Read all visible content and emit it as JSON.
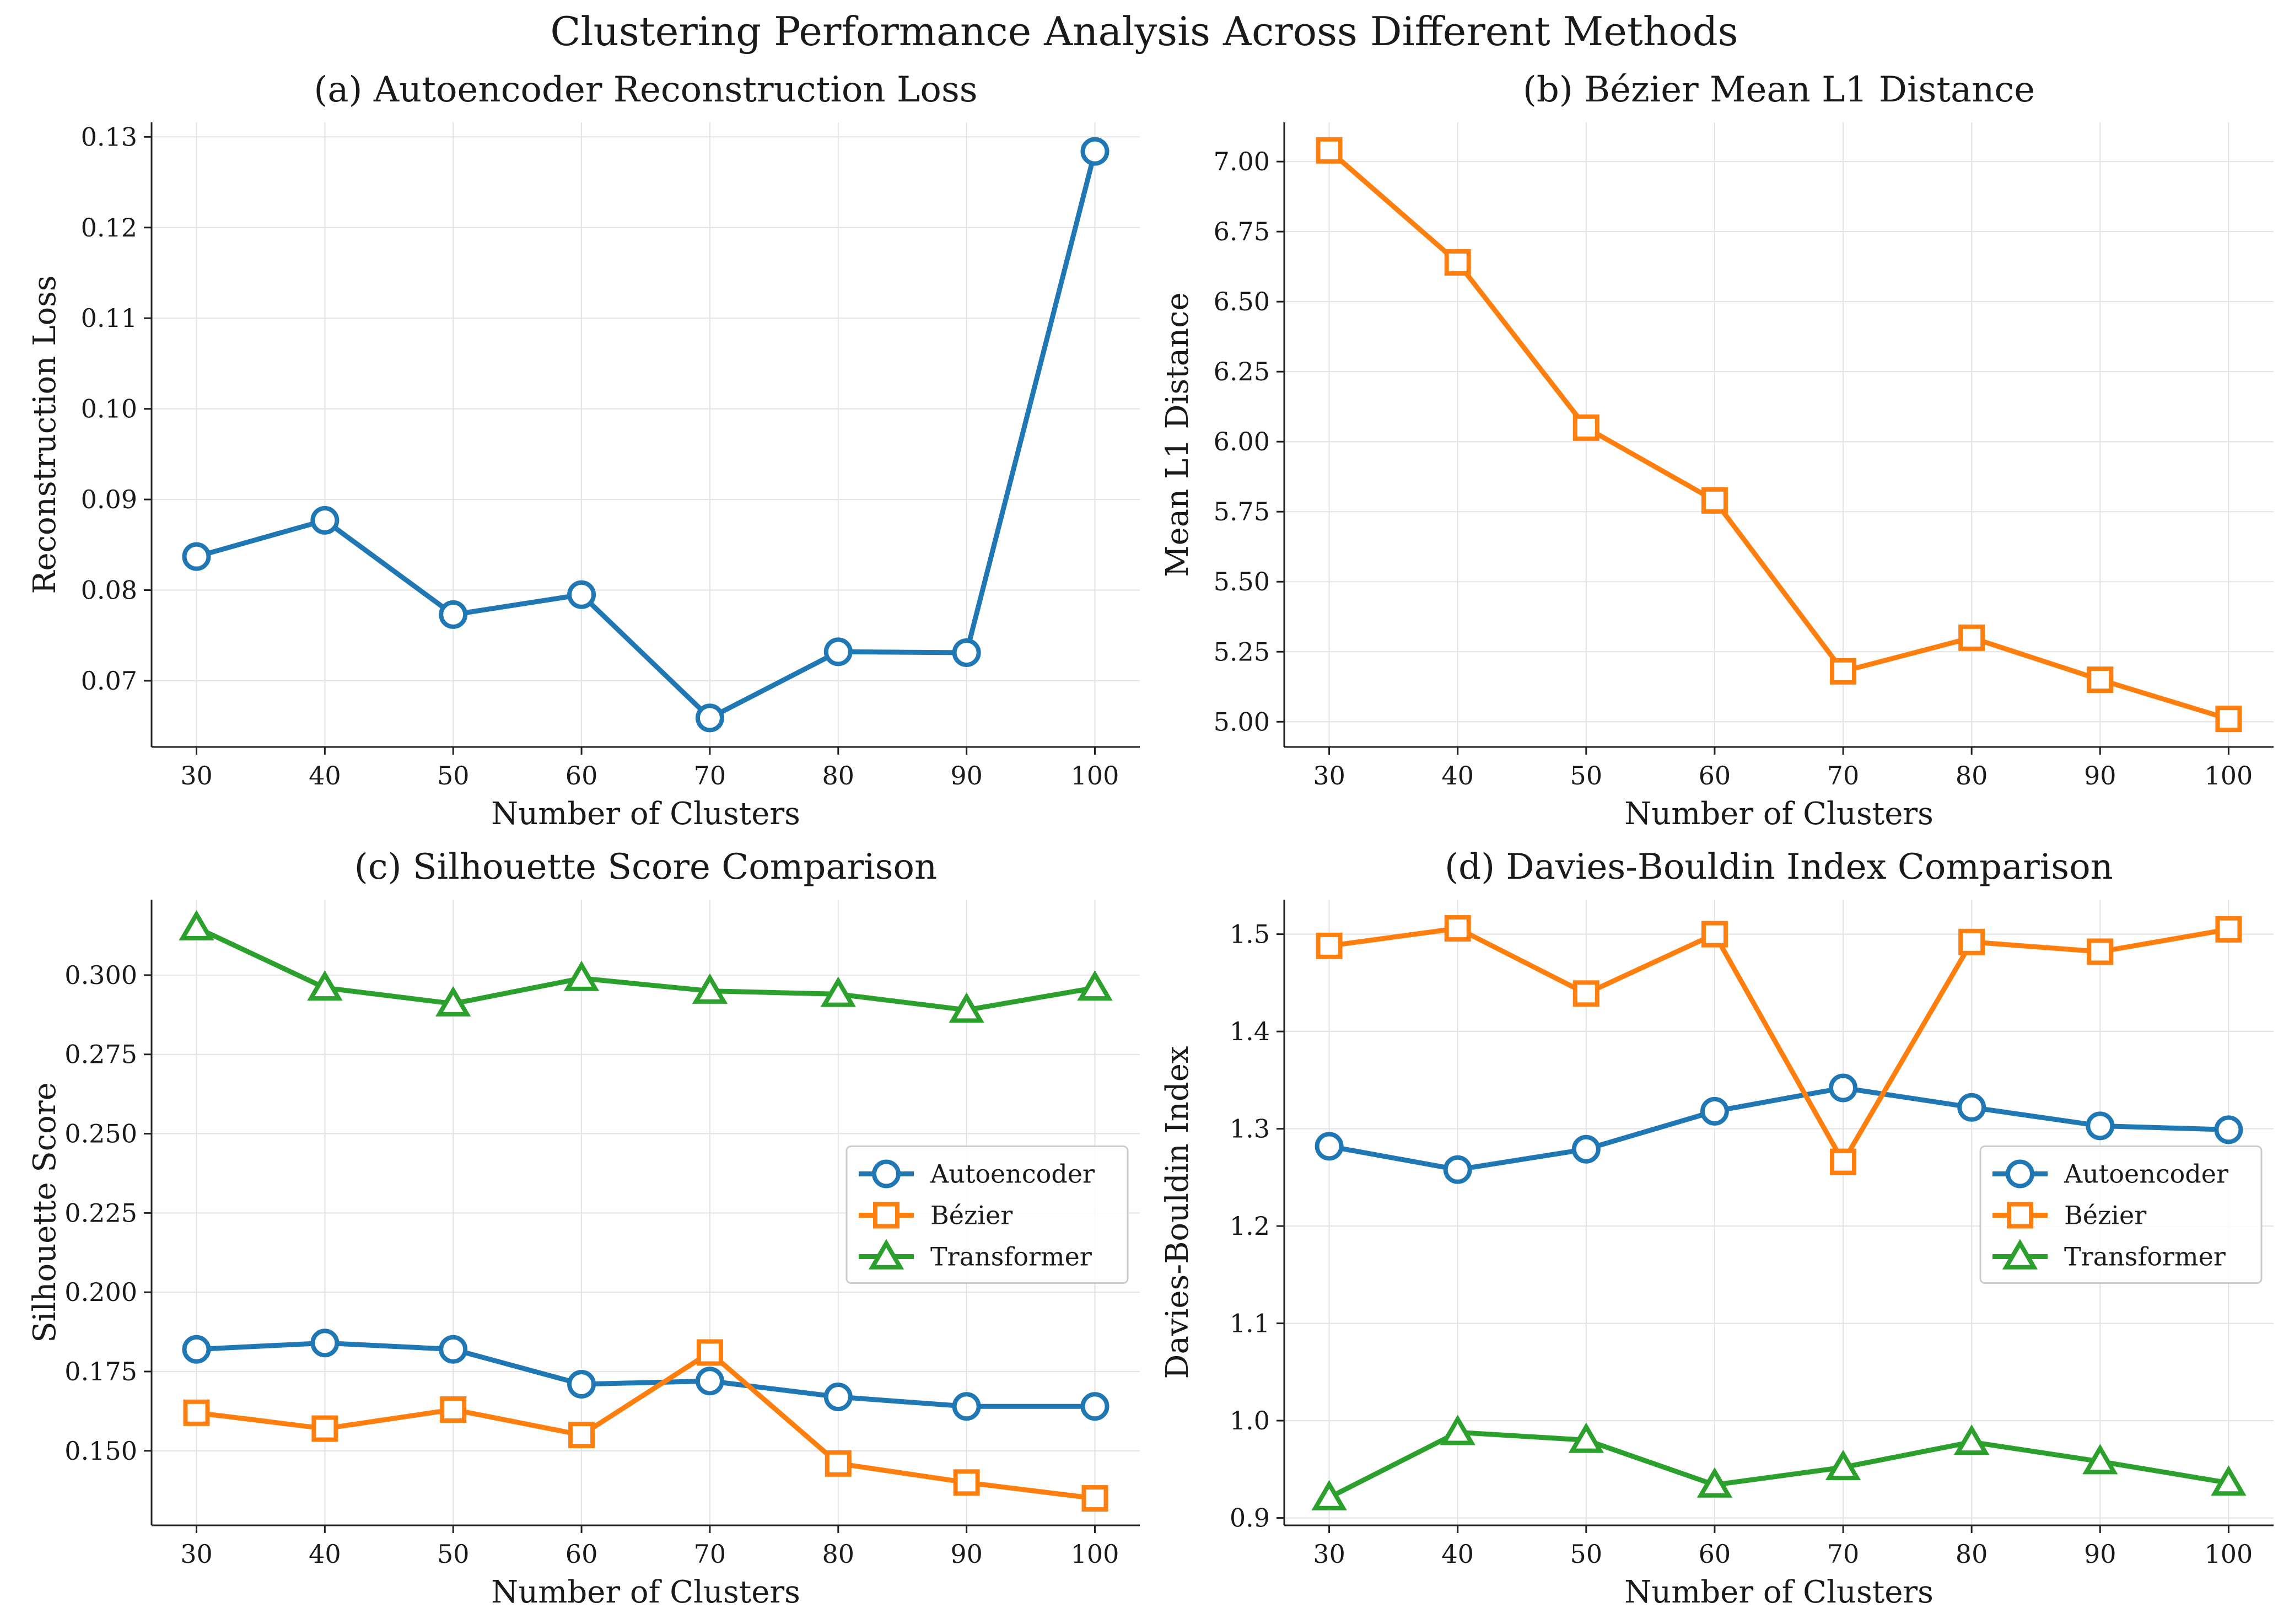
{
  "suptitle": "Clustering Performance Analysis Across Different Methods",
  "colors": {
    "Autoencoder": "#1f77b4",
    "Bézier": "#ff7f0e",
    "Transformer": "#2ca02c"
  },
  "markers": {
    "Autoencoder": "circle",
    "Bézier": "square",
    "Transformer": "triangle"
  },
  "chart_data": [
    {
      "type": "line",
      "title": "(a) Autoencoder Reconstruction Loss",
      "xlabel": "Number of Clusters",
      "ylabel": "Reconstruction Loss",
      "x": [
        30,
        40,
        50,
        60,
        70,
        80,
        90,
        100
      ],
      "xticks": [
        "30",
        "40",
        "50",
        "60",
        "70",
        "80",
        "90",
        "100"
      ],
      "yticks": [
        "0.07",
        "0.08",
        "0.09",
        "0.10",
        "0.11",
        "0.12",
        "0.13"
      ],
      "ytick_values": [
        0.07,
        0.08,
        0.09,
        0.1,
        0.11,
        0.12,
        0.13
      ],
      "xlim": [
        26.5,
        103.5
      ],
      "ylim": [
        0.0627,
        0.1316
      ],
      "grid": true,
      "legend": null,
      "series": [
        {
          "method": "Autoencoder",
          "values": [
            0.0837,
            0.0877,
            0.0773,
            0.0795,
            0.0659,
            0.0732,
            0.0731,
            0.1284
          ]
        }
      ]
    },
    {
      "type": "line",
      "title": "(b) Bézier Mean L1 Distance",
      "xlabel": "Number of Clusters",
      "ylabel": "Mean L1 Distance",
      "x": [
        30,
        40,
        50,
        60,
        70,
        80,
        90,
        100
      ],
      "xticks": [
        "30",
        "40",
        "50",
        "60",
        "70",
        "80",
        "90",
        "100"
      ],
      "yticks": [
        "5.00",
        "5.25",
        "5.50",
        "5.75",
        "6.00",
        "6.25",
        "6.50",
        "6.75",
        "7.00"
      ],
      "ytick_values": [
        5.0,
        5.25,
        5.5,
        5.75,
        6.0,
        6.25,
        6.5,
        6.75,
        7.0
      ],
      "xlim": [
        26.5,
        103.5
      ],
      "ylim": [
        4.91,
        7.14
      ],
      "grid": true,
      "legend": null,
      "series": [
        {
          "method": "Bézier",
          "values": [
            7.04,
            6.64,
            6.05,
            5.79,
            5.18,
            5.3,
            5.15,
            5.01
          ]
        }
      ]
    },
    {
      "type": "line",
      "title": "(c) Silhouette Score Comparison",
      "xlabel": "Number of Clusters",
      "ylabel": "Silhouette Score",
      "x": [
        30,
        40,
        50,
        60,
        70,
        80,
        90,
        100
      ],
      "xticks": [
        "30",
        "40",
        "50",
        "60",
        "70",
        "80",
        "90",
        "100"
      ],
      "yticks": [
        "0.150",
        "0.175",
        "0.200",
        "0.225",
        "0.250",
        "0.275",
        "0.300"
      ],
      "ytick_values": [
        0.15,
        0.175,
        0.2,
        0.225,
        0.25,
        0.275,
        0.3
      ],
      "xlim": [
        26.5,
        103.5
      ],
      "ylim": [
        0.1265,
        0.3238
      ],
      "grid": true,
      "legend": "center-right",
      "series": [
        {
          "name": "Autoencoder",
          "method": "Autoencoder",
          "values": [
            0.182,
            0.184,
            0.182,
            0.171,
            0.172,
            0.167,
            0.164,
            0.164
          ]
        },
        {
          "name": "Bézier",
          "method": "Bézier",
          "values": [
            0.162,
            0.157,
            0.163,
            0.155,
            0.181,
            0.146,
            0.14,
            0.135
          ]
        },
        {
          "name": "Transformer",
          "method": "Transformer",
          "values": [
            0.315,
            0.296,
            0.291,
            0.299,
            0.295,
            0.294,
            0.289,
            0.296
          ]
        }
      ]
    },
    {
      "type": "line",
      "title": "(d) Davies-Bouldin Index Comparison",
      "xlabel": "Number of Clusters",
      "ylabel": "Davies-Bouldin Index",
      "x": [
        30,
        40,
        50,
        60,
        70,
        80,
        90,
        100
      ],
      "xticks": [
        "30",
        "40",
        "50",
        "60",
        "70",
        "80",
        "90",
        "100"
      ],
      "yticks": [
        "0.9",
        "1.0",
        "1.1",
        "1.2",
        "1.3",
        "1.4",
        "1.5"
      ],
      "ytick_values": [
        0.9,
        1.0,
        1.1,
        1.2,
        1.3,
        1.4,
        1.5
      ],
      "xlim": [
        26.5,
        103.5
      ],
      "ylim": [
        0.8924,
        1.5355
      ],
      "grid": true,
      "legend": "center-right",
      "series": [
        {
          "name": "Autoencoder",
          "method": "Autoencoder",
          "values": [
            1.282,
            1.258,
            1.279,
            1.318,
            1.342,
            1.322,
            1.303,
            1.299
          ]
        },
        {
          "name": "Bézier",
          "method": "Bézier",
          "values": [
            1.488,
            1.506,
            1.439,
            1.5,
            1.266,
            1.492,
            1.482,
            1.505
          ]
        },
        {
          "name": "Transformer",
          "method": "Transformer",
          "values": [
            0.921,
            0.988,
            0.98,
            0.934,
            0.952,
            0.978,
            0.958,
            0.936
          ]
        }
      ]
    }
  ]
}
